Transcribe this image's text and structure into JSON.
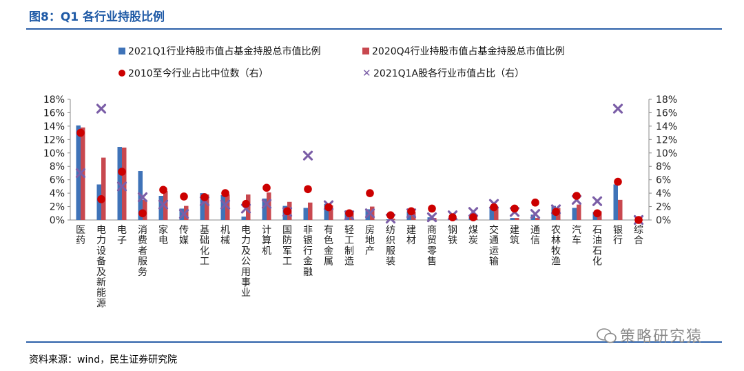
{
  "header": {
    "title": "图8：Q1 各行业持股比例"
  },
  "footer": {
    "source": "资料来源：wind，民生证券研究院",
    "watermark": "策略研究猿"
  },
  "colors": {
    "bar2021": "#3f73b8",
    "bar2020": "#c8484f",
    "median": "#cc0000",
    "cross": "#7b5ea7",
    "rule": "#2b5fa8"
  },
  "chart_data": {
    "type": "bar",
    "categories": [
      "医药",
      "电力设备及新能源",
      "电子",
      "消费者服务",
      "家电",
      "传媒",
      "基础化工",
      "机械",
      "电力及公用事业",
      "计算机",
      "国防军工",
      "非银行金融",
      "有色金属",
      "轻工制造",
      "房地产",
      "纺织服装",
      "建材",
      "商贸零售",
      "钢铁",
      "煤炭",
      "交通运输",
      "建筑",
      "通信",
      "农林牧渔",
      "汽车",
      "石油石化",
      "银行",
      "综合"
    ],
    "series": [
      {
        "name": "2021Q1行业持股市值占基金持股总市值比例",
        "type": "bar",
        "axis": "left",
        "values": [
          14.1,
          5.3,
          10.9,
          7.3,
          3.6,
          1.7,
          4.0,
          3.7,
          0.5,
          3.2,
          2.1,
          1.8,
          2.4,
          1.3,
          1.6,
          0.1,
          1.3,
          0.4,
          0.2,
          0.4,
          1.8,
          0.3,
          0.8,
          2.1,
          1.8,
          1.2,
          5.3,
          0.0
        ]
      },
      {
        "name": "2020Q4行业持股市值占基金持股总市值比例",
        "type": "bar",
        "axis": "left",
        "values": [
          13.8,
          9.3,
          10.8,
          3.0,
          4.3,
          2.1,
          3.8,
          3.8,
          3.8,
          4.1,
          2.7,
          2.6,
          2.2,
          1.1,
          2.0,
          0.2,
          1.2,
          0.3,
          0.1,
          0.2,
          2.0,
          0.3,
          0.3,
          1.8,
          2.3,
          1.3,
          3.0,
          0.0
        ]
      },
      {
        "name": "2010至今行业占比中位数（右）",
        "type": "dot",
        "axis": "right",
        "values": [
          13.0,
          3.1,
          7.2,
          1.0,
          4.5,
          3.5,
          3.4,
          4.0,
          2.4,
          4.8,
          1.3,
          4.6,
          1.9,
          1.0,
          4.0,
          0.7,
          1.3,
          1.7,
          0.4,
          0.4,
          1.9,
          1.7,
          2.6,
          1.2,
          3.6,
          1.0,
          5.7,
          0.0
        ]
      },
      {
        "name": "2021Q1A股各行业市值占比（右）",
        "type": "cross",
        "axis": "right",
        "values": [
          7.0,
          16.6,
          5.0,
          3.4,
          2.3,
          0.9,
          2.8,
          2.3,
          1.7,
          2.4,
          1.2,
          9.6,
          2.2,
          0.7,
          1.0,
          0.2,
          1.0,
          0.4,
          0.7,
          1.2,
          2.4,
          1.2,
          0.9,
          1.6,
          3.0,
          2.8,
          16.6,
          0.0
        ]
      }
    ],
    "yTicks": [
      "0%",
      "2%",
      "4%",
      "6%",
      "8%",
      "10%",
      "12%",
      "14%",
      "16%",
      "18%"
    ],
    "ylim": [
      0,
      18
    ],
    "y2lim": [
      0,
      18
    ],
    "legend_position": "top"
  }
}
